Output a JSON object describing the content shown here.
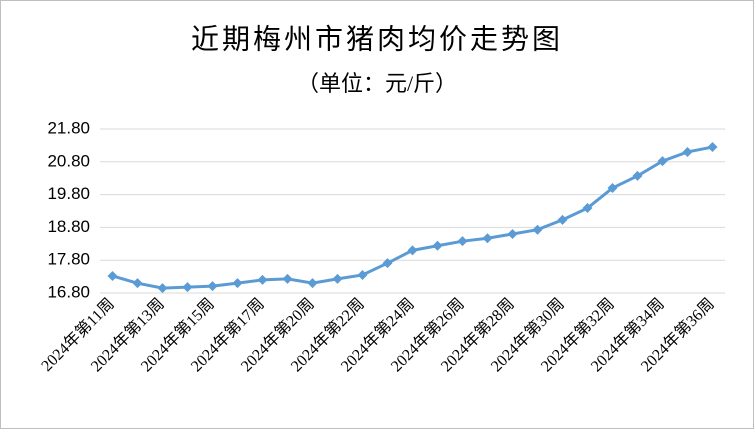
{
  "chart_data": {
    "type": "line",
    "title": "近期梅州市猪肉均价走势图",
    "subtitle": "（单位：元/斤）",
    "categories": [
      "2024年第11周",
      null,
      "2024年第13周",
      null,
      "2024年第15周",
      null,
      "2024年第17周",
      null,
      "2024年第20周",
      null,
      "2024年第22周",
      null,
      "2024年第24周",
      null,
      "2024年第26周",
      null,
      "2024年第28周",
      null,
      "2024年第30周",
      null,
      "2024年第32周",
      null,
      "2024年第34周",
      null,
      "2024年第36周"
    ],
    "series": [
      {
        "color": "#5b9bd5",
        "values": [
          17.32,
          17.1,
          16.95,
          16.98,
          17.01,
          17.1,
          17.2,
          17.23,
          17.1,
          17.23,
          17.35,
          17.71,
          18.1,
          18.24,
          18.38,
          18.47,
          18.6,
          18.73,
          19.03,
          19.39,
          20.0,
          20.37,
          20.82,
          21.1,
          21.25
        ]
      }
    ],
    "ylim": [
      16.8,
      21.8
    ],
    "yticks": [
      {
        "value": 16.8,
        "label": "16.80"
      },
      {
        "value": 17.8,
        "label": "17.80"
      },
      {
        "value": 18.8,
        "label": "18.80"
      },
      {
        "value": 19.8,
        "label": "19.80"
      },
      {
        "value": 20.8,
        "label": "20.80"
      },
      {
        "value": 21.8,
        "label": "21.80"
      }
    ],
    "grid": true
  }
}
